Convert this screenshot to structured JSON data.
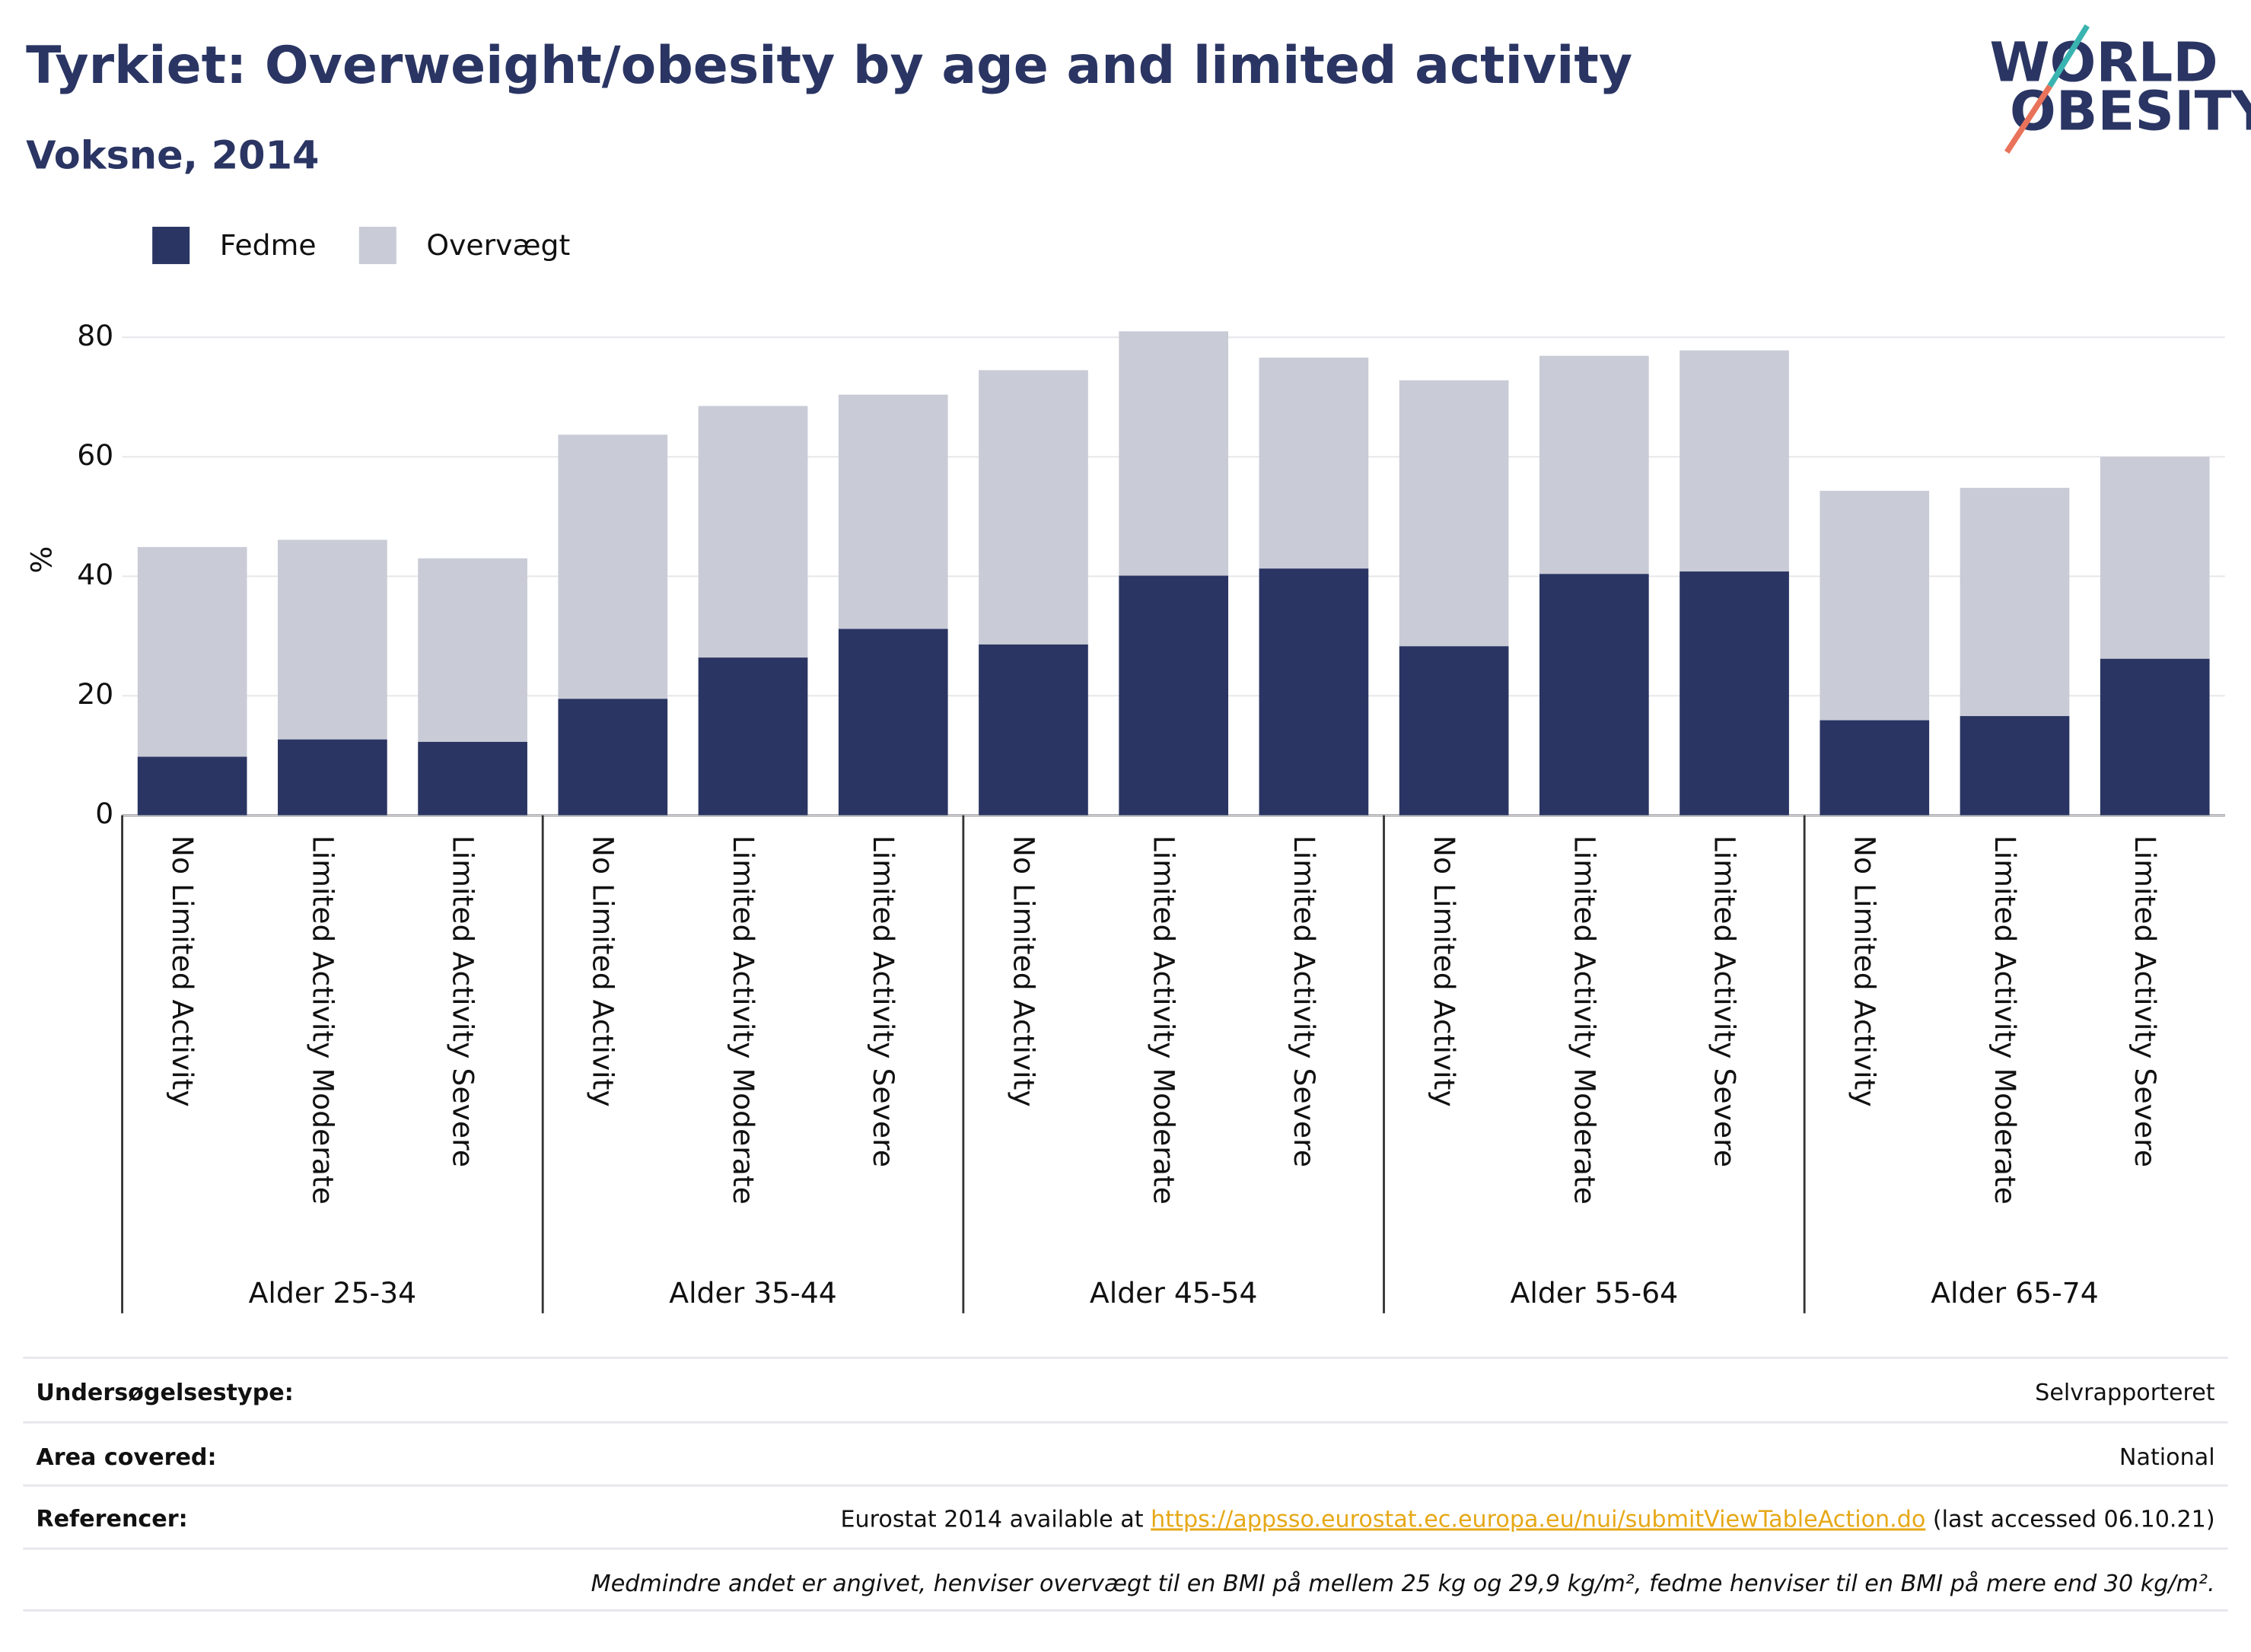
{
  "chart_data": {
    "type": "stacked_bar",
    "title": "Tyrkiet: Overweight/obesity by age and limited activity",
    "subtitle": "Voksne, 2014",
    "y_label": "%",
    "groups": [
      "Alder 25-34",
      "Alder 35-44",
      "Alder 45-54",
      "Alder 55-64",
      "Alder 65-74"
    ],
    "categories": [
      "No Limited Activity",
      "Limited Activity Moderate",
      "Limited Activity Severe",
      "No Limited Activity",
      "Limited Activity Moderate",
      "Limited Activity Severe",
      "No Limited Activity",
      "Limited Activity Moderate",
      "Limited Activity Severe",
      "No Limited Activity",
      "Limited Activity Moderate",
      "Limited Activity Severe",
      "No Limited Activity",
      "Limited Activity Moderate",
      "Limited Activity Severe"
    ],
    "series": [
      {
        "name": "Fedme",
        "color": "#2a3563",
        "values": [
          9.8,
          12.7,
          12.3,
          19.5,
          26.4,
          31.2,
          28.6,
          40.1,
          41.3,
          28.3,
          40.4,
          40.8,
          15.9,
          16.6,
          26.2
        ]
      },
      {
        "name": "Overvægt",
        "color": "#c9cbd6",
        "values": [
          35.1,
          33.4,
          30.7,
          44.2,
          42.1,
          39.2,
          45.9,
          40.9,
          35.3,
          44.5,
          36.5,
          37.0,
          38.4,
          38.2,
          33.8
        ]
      }
    ],
    "ylim": [
      0,
      80
    ],
    "yticks": [
      0,
      20,
      40,
      60,
      80
    ],
    "grid": true,
    "legend": "top-left"
  },
  "logo": [
    "WORLD",
    "OBESITY"
  ],
  "footer": {
    "rows": [
      {
        "label": "Undersøgelsestype:",
        "value": "Selvrapporteret"
      },
      {
        "label": "Area covered:",
        "value": "National"
      }
    ],
    "reference": {
      "label": "Referencer:",
      "before": "Eurostat 2014 available at ",
      "link": "https://appsso.eurostat.ec.europa.eu/nui/submitViewTableAction.do",
      "after": " (last accessed 06.10.21)"
    },
    "note": "Medmindre andet er angivet, henviser overvægt til en BMI på mellem 25 kg og 29,9 kg/m², fedme henviser til en BMI på mere end 30 kg/m²."
  }
}
